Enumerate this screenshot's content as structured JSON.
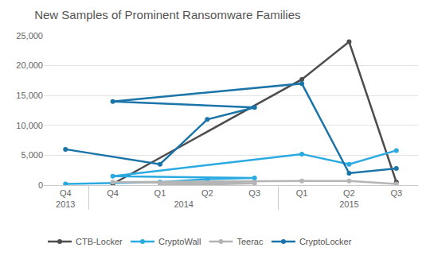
{
  "chart_data": {
    "type": "line",
    "title": "New Samples of Prominent Ransomware Families",
    "categories": [
      [
        "2013",
        "Q4"
      ],
      [
        "2014",
        "Q1"
      ],
      [
        "2014",
        "Q2"
      ],
      [
        "2014",
        "Q3"
      ],
      [
        "2014",
        "Q4"
      ],
      [
        "2015",
        "Q1"
      ],
      [
        "2015",
        "Q2"
      ],
      [
        "2015",
        "Q3"
      ]
    ],
    "series": [
      {
        "name": "CTB-Locker",
        "color": "#4d4d4f",
        "values": [
          null,
          null,
          null,
          null,
          200,
          17700,
          24000,
          500
        ]
      },
      {
        "name": "CryptoWall",
        "color": "#2aaae1",
        "values": [
          200,
          500,
          1000,
          1200,
          1500,
          5200,
          3500,
          5800
        ]
      },
      {
        "name": "Teerac",
        "color": "#b5b5b5",
        "values": [
          null,
          100,
          100,
          300,
          500,
          700,
          700,
          200
        ]
      },
      {
        "name": "CryptoLocker",
        "color": "#1a74a8",
        "values": [
          6000,
          3500,
          11000,
          13000,
          14000,
          17000,
          2000,
          2800
        ]
      }
    ],
    "ylim": [
      0,
      25000
    ],
    "yticks": [
      0,
      {
        "value": 5000,
        "label": "5,000"
      },
      {
        "value": 10000,
        "label": "10,000"
      },
      {
        "value": 15000,
        "label": "15,000"
      },
      {
        "value": 20000,
        "label": "20,000"
      },
      {
        "value": 25000,
        "label": "25,000"
      }
    ],
    "grid": true,
    "legend": "bottom",
    "marker": "circle",
    "line_style": "solid"
  }
}
